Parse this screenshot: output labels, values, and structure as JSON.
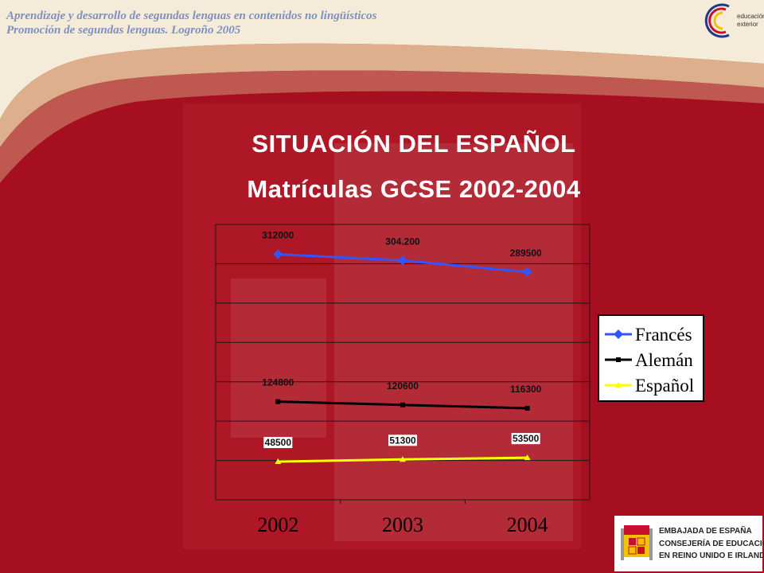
{
  "header": {
    "line1": "Aprendizaje y desarrollo de segundas lenguas en contenidos no lingüísticos",
    "line2": "Promoción de segundas lenguas. Logroño 2005"
  },
  "logo": {
    "line1": "educación",
    "line2": "exterior"
  },
  "title": "SITUACIÓN DEL ESPAÑOL",
  "subtitle": "Matrículas GCSE 2002-2004",
  "embassy": {
    "line1": "EMBAJADA DE ESPAÑA",
    "line2": "CONSEJERÍA DE EDUCACIÓN",
    "line3": "EN REINO UNIDO E IRLANDA"
  },
  "colors": {
    "background": "#a60f1f",
    "frances": "#3355ff",
    "aleman": "#000000",
    "espanol": "#ffff00"
  },
  "chart_data": {
    "type": "line",
    "categories": [
      "2002",
      "2003",
      "2004"
    ],
    "series": [
      {
        "name": "Francés",
        "values": [
          312000,
          304200,
          289500
        ],
        "labels": [
          "312000",
          "304.200",
          "289500"
        ],
        "color": "#3355ff",
        "marker": "diamond"
      },
      {
        "name": "Alemán",
        "values": [
          124800,
          120600,
          116300
        ],
        "labels": [
          "124800",
          "120600",
          "116300"
        ],
        "color": "#000000",
        "marker": "square"
      },
      {
        "name": "Español",
        "values": [
          48500,
          51300,
          53500
        ],
        "labels": [
          "48500",
          "51300",
          "53500"
        ],
        "color": "#ffff00",
        "marker": "triangle"
      }
    ],
    "ylim": [
      0,
      350000
    ],
    "grid": true,
    "legend_position": "right",
    "title": "",
    "xlabel": "",
    "ylabel": ""
  }
}
